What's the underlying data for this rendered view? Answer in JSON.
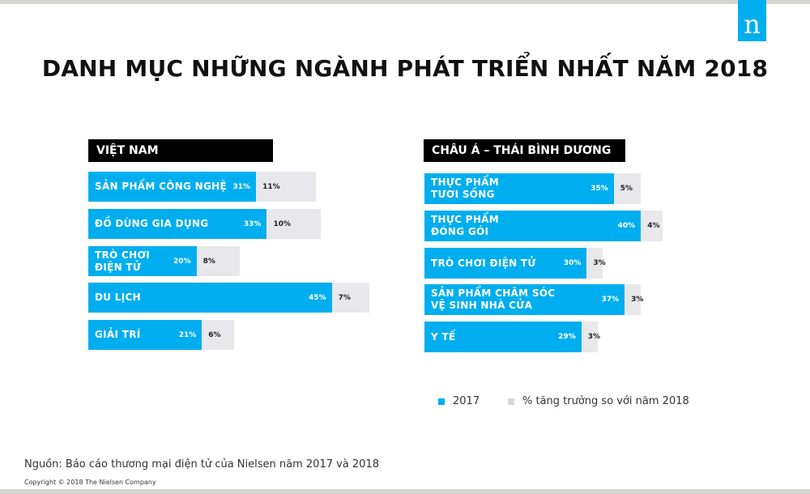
{
  "title": "DANH MỤC NHỮNG NGÀNH PHÁT TRIỂN NHẤT NĂM 2018",
  "logo_text": "n",
  "colors": {
    "series_2017": "#00aeef",
    "growth": "#e8e8ec",
    "header": "#000000"
  },
  "chart_data": [
    {
      "type": "bar",
      "orientation": "horizontal",
      "stacked": true,
      "title": "VIỆT NAM",
      "categories": [
        "SẢN PHẨM CÔNG  NGHỆ",
        "ĐỒ DÙNG GIA DỤNG",
        "TRÒ CHƠI\nĐIỆN TỬ",
        "DU LỊCH",
        "GIẢI TRÍ"
      ],
      "series": [
        {
          "name": "2017",
          "values": [
            31,
            33,
            20,
            45,
            21
          ],
          "labels": [
            "31%",
            "33%",
            "20%",
            "45%",
            "21%"
          ]
        },
        {
          "name": "% tăng trưởng so với năm 2018",
          "values": [
            11,
            10,
            8,
            7,
            6
          ],
          "labels": [
            "11%",
            "10%",
            "8%",
            "7%",
            "6%"
          ]
        }
      ]
    },
    {
      "type": "bar",
      "orientation": "horizontal",
      "stacked": true,
      "title": "CHÂU Á – THÁI BÌNH DƯƠNG",
      "categories": [
        "THỰC PHẨM\nTƯƠI SỐNG",
        "THỰC PHẨM\nĐÓNG GÓI",
        "TRÒ CHƠI ĐIỆN TỬ",
        "SẢN PHẨM CHĂM SÓC\nVỆ SINH NHÀ CỬA",
        "Y TẾ"
      ],
      "series": [
        {
          "name": "2017",
          "values": [
            35,
            40,
            30,
            37,
            29
          ],
          "labels": [
            "35%",
            "40%",
            "30%",
            "37%",
            "29%"
          ]
        },
        {
          "name": "% tăng trưởng so với năm 2018",
          "values": [
            5,
            4,
            3,
            3,
            3
          ],
          "labels": [
            "5%",
            "4%",
            "3%",
            "3%",
            "3%"
          ]
        }
      ]
    }
  ],
  "legend": {
    "items": [
      "2017",
      "% tăng trưởng so với năm 2018"
    ]
  },
  "footer": {
    "source": "Nguồn: Báo cáo thương mại điện tử của Nielsen năm 2017 và 2018",
    "copyright": "Copyright © 2018  The Nielsen Company"
  }
}
